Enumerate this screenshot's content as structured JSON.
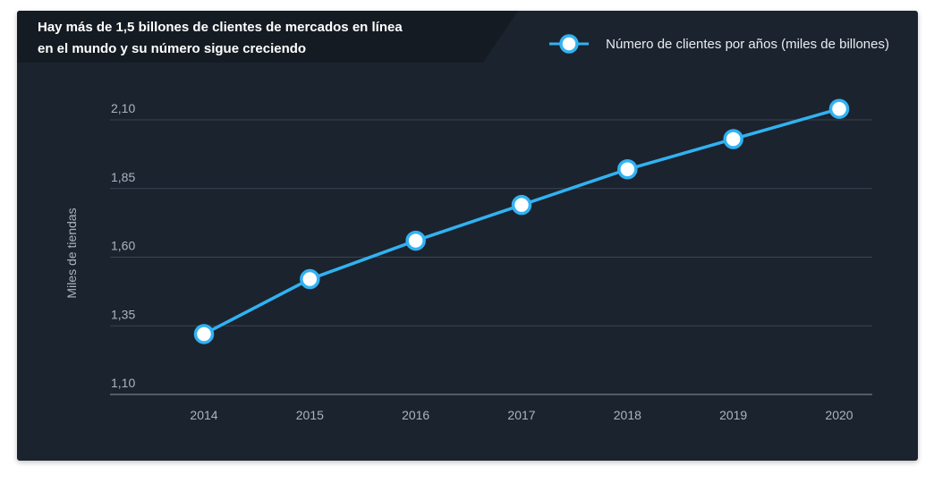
{
  "header": {
    "title_line1": "Hay más de 1,5 billones de clientes de mercados en línea",
    "title_line2": "en el mundo y su número sigue creciendo"
  },
  "colors": {
    "card_bg": "#1b232e",
    "title_bg": "#141b23",
    "series": "#31b2f2",
    "grid": "#3a4450",
    "axis": "#8a95a0"
  },
  "chart_data": {
    "type": "line",
    "title": "Hay más de 1,5 billones de clientes de mercados en línea en el mundo y su número sigue creciendo",
    "xlabel": "",
    "ylabel": "Miles de tiendas",
    "categories": [
      "2014",
      "2015",
      "2016",
      "2017",
      "2018",
      "2019",
      "2020"
    ],
    "series": [
      {
        "name": "Número de clientes por años (miles de billones)",
        "values": [
          1.32,
          1.52,
          1.66,
          1.79,
          1.92,
          2.03,
          2.14
        ]
      }
    ],
    "ylim": [
      1.1,
      2.1
    ],
    "yticks": [
      "1,10",
      "1,35",
      "1,60",
      "1,85",
      "2,10"
    ],
    "ytick_values": [
      1.1,
      1.35,
      1.6,
      1.85,
      2.1
    ],
    "grid": true,
    "legend_position": "top-right"
  }
}
